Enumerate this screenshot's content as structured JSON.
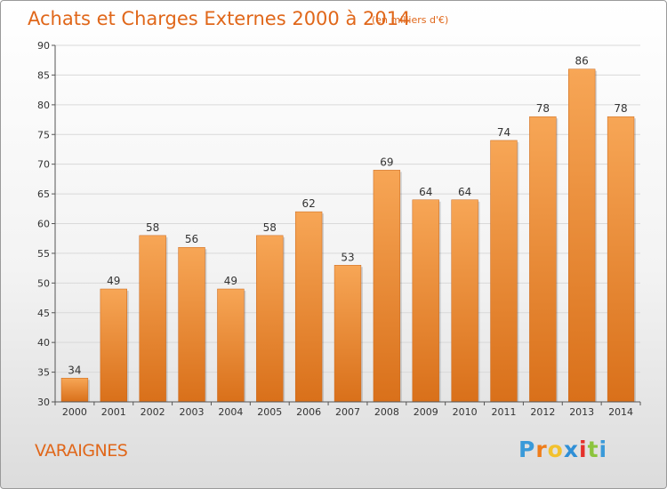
{
  "chart_data": {
    "type": "bar",
    "title": "Achats et Charges Externes 2000 à 2014",
    "subtitle": "(en milliers d'€)",
    "categories": [
      "2000",
      "2001",
      "2002",
      "2003",
      "2004",
      "2005",
      "2006",
      "2007",
      "2008",
      "2009",
      "2010",
      "2011",
      "2012",
      "2013",
      "2014"
    ],
    "values": [
      34,
      49,
      58,
      56,
      49,
      58,
      62,
      53,
      69,
      64,
      64,
      74,
      78,
      86,
      78
    ],
    "ylim": [
      30,
      90
    ],
    "yticks": [
      30,
      35,
      40,
      45,
      50,
      55,
      60,
      65,
      70,
      75,
      80,
      85,
      90
    ],
    "grid": true,
    "legend": "none",
    "bar_color": "#f08a2a",
    "bar_color_light": "#f7a656",
    "bar_color_dark": "#d9701a"
  },
  "footer": {
    "commune": "VARAIGNES",
    "logo_letters": [
      "P",
      "r",
      "o",
      "x",
      "i",
      "t",
      "i"
    ],
    "logo_colors": [
      "#3a9ad9",
      "#ef7d1a",
      "#f2c12e",
      "#2f8fd6",
      "#e4312b",
      "#8cc43d",
      "#3a9ad9"
    ]
  },
  "colors": {
    "accent": "#e0671a",
    "gridline": "#d9d9d9"
  }
}
